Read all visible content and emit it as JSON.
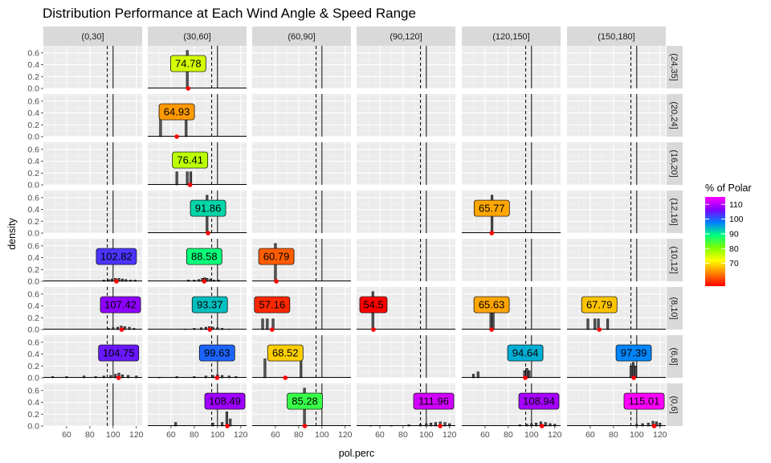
{
  "chart_data": {
    "type": "bar",
    "title": "Distribution Performance at Each Wind Angle & Speed Range",
    "xlabel": "pol.perc",
    "ylabel": "density",
    "xlim": [
      40,
      125
    ],
    "ylim": [
      0,
      0.72
    ],
    "x_ticks": [
      60,
      80,
      100,
      120
    ],
    "x_tick_labels": [
      "60",
      "80",
      "100",
      "120"
    ],
    "y_ticks": [
      0,
      0.2,
      0.4,
      0.6
    ],
    "y_tick_labels": [
      "0.0",
      "0.2",
      "0.4",
      "0.6"
    ],
    "solid_line_x": 100,
    "dashed_line_x": 95,
    "columns": [
      "(0,30]",
      "(30,60]",
      "(60,90]",
      "(90,120]",
      "(120,150]",
      "(150,180]"
    ],
    "rows": [
      "(24,35]",
      "(20,24]",
      "(16,20]",
      "(12,16]",
      "(10,12]",
      "(8,10]",
      "(6,8]",
      "(0,6]"
    ],
    "grid": true,
    "legend": {
      "title": "% of Polar",
      "position": "right",
      "min": 54.5,
      "max": 115.01,
      "breaks": [
        70,
        80,
        90,
        100,
        110
      ],
      "break_labels": [
        "70",
        "80",
        "90",
        "100",
        "110"
      ],
      "colors": [
        "#ff0000",
        "#ff8000",
        "#ffff00",
        "#80ff00",
        "#00ff80",
        "#0080ff",
        "#8000ff",
        "#ff00ff"
      ]
    },
    "panels": [
      {
        "row": 0,
        "col": 1,
        "value": 74.78,
        "label": "74.78",
        "bars": [
          [
            74,
            0.64
          ]
        ]
      },
      {
        "row": 1,
        "col": 1,
        "value": 64.93,
        "label": "64.93",
        "bars": [
          [
            51,
            0.32
          ],
          [
            73,
            0.32
          ]
        ]
      },
      {
        "row": 2,
        "col": 1,
        "value": 76.41,
        "label": "76.41",
        "bars": [
          [
            65,
            0.22
          ],
          [
            74,
            0.22
          ],
          [
            77,
            0.22
          ]
        ]
      },
      {
        "row": 3,
        "col": 1,
        "value": 91.86,
        "label": "91.86",
        "bars": [
          [
            91,
            0.64
          ]
        ]
      },
      {
        "row": 3,
        "col": 4,
        "value": 65.77,
        "label": "65.77",
        "bars": [
          [
            66,
            0.64
          ]
        ]
      },
      {
        "row": 4,
        "col": 0,
        "value": 102.82,
        "label": "102.82",
        "bars": [
          [
            92,
            0.02
          ],
          [
            96,
            0.03
          ],
          [
            99,
            0.04
          ],
          [
            102,
            0.05
          ],
          [
            105,
            0.05
          ],
          [
            108,
            0.04
          ],
          [
            111,
            0.03
          ],
          [
            115,
            0.02
          ],
          [
            119,
            0.02
          ]
        ]
      },
      {
        "row": 4,
        "col": 1,
        "value": 88.58,
        "label": "88.58",
        "bars": [
          [
            75,
            0.02
          ],
          [
            80,
            0.02
          ],
          [
            84,
            0.03
          ],
          [
            87,
            0.05
          ],
          [
            89,
            0.06
          ],
          [
            91,
            0.05
          ],
          [
            94,
            0.04
          ],
          [
            97,
            0.02
          ],
          [
            101,
            0.02
          ]
        ]
      },
      {
        "row": 4,
        "col": 2,
        "value": 60.79,
        "label": "60.79",
        "bars": [
          [
            60,
            0.64
          ]
        ]
      },
      {
        "row": 5,
        "col": 0,
        "value": 107.42,
        "label": "107.42",
        "bars": [
          [
            96,
            0.02
          ],
          [
            100,
            0.03
          ],
          [
            104,
            0.04
          ],
          [
            107,
            0.06
          ],
          [
            110,
            0.05
          ],
          [
            114,
            0.04
          ],
          [
            118,
            0.02
          ]
        ]
      },
      {
        "row": 5,
        "col": 1,
        "value": 93.37,
        "label": "93.37",
        "bars": [
          [
            72,
            0.01
          ],
          [
            80,
            0.02
          ],
          [
            86,
            0.03
          ],
          [
            90,
            0.04
          ],
          [
            93,
            0.05
          ],
          [
            96,
            0.04
          ],
          [
            100,
            0.03
          ],
          [
            104,
            0.02
          ],
          [
            110,
            0.01
          ]
        ]
      },
      {
        "row": 5,
        "col": 2,
        "value": 57.16,
        "label": "57.16",
        "bars": [
          [
            49,
            0.18
          ],
          [
            53,
            0.18
          ],
          [
            58,
            0.18
          ]
        ]
      },
      {
        "row": 5,
        "col": 3,
        "value": 54.5,
        "label": "54.5",
        "bars": [
          [
            54,
            0.64
          ]
        ]
      },
      {
        "row": 5,
        "col": 4,
        "value": 65.63,
        "label": "65.63",
        "bars": [
          [
            65,
            0.32
          ],
          [
            67,
            0.32
          ]
        ]
      },
      {
        "row": 5,
        "col": 5,
        "value": 67.79,
        "label": "67.79",
        "bars": [
          [
            58,
            0.18
          ],
          [
            64,
            0.18
          ],
          [
            67,
            0.18
          ],
          [
            75,
            0.18
          ]
        ]
      },
      {
        "row": 6,
        "col": 0,
        "value": 104.75,
        "label": "104.75",
        "bars": [
          [
            48,
            0.02
          ],
          [
            60,
            0.02
          ],
          [
            75,
            0.03
          ],
          [
            85,
            0.02
          ],
          [
            92,
            0.03
          ],
          [
            98,
            0.04
          ],
          [
            102,
            0.06
          ],
          [
            105,
            0.08
          ],
          [
            108,
            0.05
          ],
          [
            113,
            0.04
          ],
          [
            120,
            0.03
          ]
        ]
      },
      {
        "row": 6,
        "col": 1,
        "value": 99.63,
        "label": "99.63",
        "bars": [
          [
            50,
            0.01
          ],
          [
            65,
            0.02
          ],
          [
            80,
            0.02
          ],
          [
            90,
            0.03
          ],
          [
            96,
            0.04
          ],
          [
            100,
            0.05
          ],
          [
            104,
            0.04
          ],
          [
            110,
            0.03
          ],
          [
            116,
            0.02
          ]
        ]
      },
      {
        "row": 6,
        "col": 2,
        "value": 68.52,
        "label": "68.52",
        "bars": [
          [
            51,
            0.32
          ],
          [
            82,
            0.32
          ]
        ]
      },
      {
        "row": 6,
        "col": 4,
        "value": 94.64,
        "label": "94.64",
        "bars": [
          [
            50,
            0.06
          ],
          [
            54,
            0.1
          ],
          [
            94,
            0.12
          ],
          [
            96,
            0.16
          ],
          [
            98,
            0.12
          ]
        ]
      },
      {
        "row": 6,
        "col": 5,
        "value": 97.39,
        "label": "97.39",
        "bars": [
          [
            95,
            0.2
          ],
          [
            97,
            0.26
          ],
          [
            99,
            0.2
          ]
        ]
      },
      {
        "row": 7,
        "col": 1,
        "value": 108.49,
        "label": "108.49",
        "bars": [
          [
            64,
            0.06
          ],
          [
            96,
            0.05
          ],
          [
            104,
            0.06
          ],
          [
            108,
            0.24
          ],
          [
            111,
            0.12
          ]
        ]
      },
      {
        "row": 7,
        "col": 2,
        "value": 85.28,
        "label": "85.28",
        "bars": [
          [
            85,
            0.64
          ]
        ]
      },
      {
        "row": 7,
        "col": 3,
        "value": 111.96,
        "label": "111.96",
        "bars": [
          [
            52,
            0.01
          ],
          [
            70,
            0.01
          ],
          [
            85,
            0.02
          ],
          [
            95,
            0.03
          ],
          [
            100,
            0.04
          ],
          [
            104,
            0.05
          ],
          [
            108,
            0.06
          ],
          [
            112,
            0.07
          ],
          [
            116,
            0.06
          ],
          [
            120,
            0.04
          ]
        ]
      },
      {
        "row": 7,
        "col": 4,
        "value": 108.94,
        "label": "108.94",
        "bars": [
          [
            90,
            0.02
          ],
          [
            96,
            0.03
          ],
          [
            100,
            0.04
          ],
          [
            104,
            0.05
          ],
          [
            108,
            0.07
          ],
          [
            112,
            0.06
          ],
          [
            116,
            0.04
          ],
          [
            120,
            0.03
          ]
        ]
      },
      {
        "row": 7,
        "col": 5,
        "value": 115.01,
        "label": "115.01",
        "bars": [
          [
            100,
            0.03
          ],
          [
            105,
            0.04
          ],
          [
            110,
            0.05
          ],
          [
            114,
            0.08
          ],
          [
            117,
            0.07
          ],
          [
            120,
            0.05
          ]
        ]
      }
    ]
  }
}
